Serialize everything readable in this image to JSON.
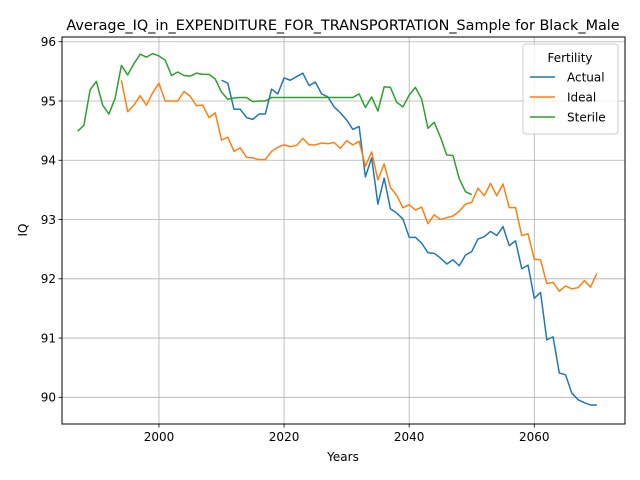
{
  "chart_data": {
    "type": "line",
    "title": "Average_IQ_in_EXPENDITURE_FOR_TRANSPORTATION_Sample for Black_Male",
    "xlabel": "Years",
    "ylabel": "IQ",
    "xlim": [
      1984.5,
      2074.5
    ],
    "ylim": [
      89.55,
      96.08
    ],
    "xticks": [
      2000,
      2020,
      2040,
      2060
    ],
    "yticks": [
      90,
      91,
      92,
      93,
      94,
      95,
      96
    ],
    "grid": true,
    "legend": {
      "title": "Fertility",
      "placement": "top-right"
    },
    "series": [
      {
        "name": "Actual",
        "color": "#1f77b4",
        "x": [
          2010,
          2011,
          2012,
          2013,
          2014,
          2015,
          2016,
          2017,
          2018,
          2019,
          2020,
          2021,
          2022,
          2023,
          2024,
          2025,
          2026,
          2027,
          2028,
          2029,
          2030,
          2031,
          2032,
          2033,
          2034,
          2035,
          2036,
          2037,
          2038,
          2039,
          2040,
          2041,
          2042,
          2043,
          2044,
          2045,
          2046,
          2047,
          2048,
          2049,
          2050,
          2051,
          2052,
          2053,
          2054,
          2055,
          2056,
          2057,
          2058,
          2059,
          2060,
          2061,
          2062,
          2063,
          2064,
          2065,
          2066,
          2067,
          2068,
          2069,
          2070
        ],
        "y": [
          95.35,
          95.3,
          94.86,
          94.86,
          94.72,
          94.69,
          94.78,
          94.78,
          95.2,
          95.12,
          95.39,
          95.35,
          95.41,
          95.47,
          95.26,
          95.32,
          95.12,
          95.07,
          94.9,
          94.8,
          94.68,
          94.52,
          94.57,
          93.72,
          94.04,
          93.26,
          93.7,
          93.18,
          93.11,
          93.01,
          92.7,
          92.7,
          92.6,
          92.44,
          92.43,
          92.35,
          92.25,
          92.32,
          92.22,
          92.4,
          92.46,
          92.67,
          92.71,
          92.8,
          92.73,
          92.88,
          92.56,
          92.64,
          92.17,
          92.23,
          91.67,
          91.77,
          90.97,
          91.02,
          90.41,
          90.38,
          90.07,
          89.96,
          89.91,
          89.87,
          89.87
        ]
      },
      {
        "name": "Ideal",
        "color": "#ff7f0e",
        "x": [
          1994,
          1995,
          1996,
          1997,
          1998,
          1999,
          2000,
          2001,
          2002,
          2003,
          2004,
          2005,
          2006,
          2007,
          2008,
          2009,
          2010,
          2011,
          2012,
          2013,
          2014,
          2015,
          2016,
          2017,
          2018,
          2019,
          2020,
          2021,
          2022,
          2023,
          2024,
          2025,
          2026,
          2027,
          2028,
          2029,
          2030,
          2031,
          2032,
          2033,
          2034,
          2035,
          2036,
          2037,
          2038,
          2039,
          2040,
          2041,
          2042,
          2043,
          2044,
          2045,
          2046,
          2047,
          2048,
          2049,
          2050,
          2051,
          2052,
          2053,
          2054,
          2055,
          2056,
          2057,
          2058,
          2059,
          2060,
          2061,
          2062,
          2063,
          2064,
          2065,
          2066,
          2067,
          2068,
          2069,
          2070
        ],
        "y": [
          95.35,
          94.82,
          94.93,
          95.09,
          94.93,
          95.14,
          95.3,
          95.0,
          95.0,
          95.0,
          95.16,
          95.08,
          94.92,
          94.93,
          94.72,
          94.8,
          94.34,
          94.39,
          94.15,
          94.21,
          94.05,
          94.04,
          94.01,
          94.01,
          94.15,
          94.22,
          94.26,
          94.23,
          94.25,
          94.37,
          94.26,
          94.26,
          94.29,
          94.28,
          94.3,
          94.2,
          94.33,
          94.26,
          94.32,
          93.9,
          94.14,
          93.67,
          93.94,
          93.54,
          93.41,
          93.2,
          93.25,
          93.16,
          93.21,
          92.93,
          93.08,
          93.0,
          93.03,
          93.06,
          93.14,
          93.26,
          93.29,
          93.53,
          93.4,
          93.61,
          93.4,
          93.6,
          93.2,
          93.2,
          92.73,
          92.76,
          92.33,
          92.32,
          91.92,
          91.94,
          91.79,
          91.88,
          91.83,
          91.85,
          91.97,
          91.86,
          92.09
        ]
      },
      {
        "name": "Sterile",
        "color": "#2ca02c",
        "x": [
          1987,
          1988,
          1989,
          1990,
          1991,
          1992,
          1993,
          1994,
          1995,
          1996,
          1997,
          1998,
          1999,
          2000,
          2001,
          2002,
          2003,
          2004,
          2005,
          2006,
          2007,
          2008,
          2009,
          2010,
          2011,
          2012,
          2013,
          2014,
          2015,
          2016,
          2017,
          2018,
          2019,
          2020,
          2021,
          2022,
          2023,
          2024,
          2025,
          2026,
          2027,
          2028,
          2029,
          2030,
          2031,
          2032,
          2033,
          2034,
          2035,
          2036,
          2037,
          2038,
          2039,
          2040,
          2041,
          2042,
          2043,
          2044,
          2045,
          2046,
          2047,
          2048,
          2049,
          2050
        ],
        "y": [
          94.49,
          94.59,
          95.19,
          95.33,
          94.93,
          94.78,
          95.05,
          95.6,
          95.44,
          95.63,
          95.79,
          95.74,
          95.8,
          95.76,
          95.69,
          95.43,
          95.49,
          95.43,
          95.42,
          95.47,
          95.45,
          95.45,
          95.37,
          95.15,
          95.03,
          95.05,
          95.06,
          95.06,
          94.99,
          95.0,
          95.0,
          95.06,
          95.06,
          95.06,
          95.06,
          95.06,
          95.06,
          95.06,
          95.06,
          95.06,
          95.06,
          95.06,
          95.06,
          95.06,
          95.06,
          95.12,
          94.89,
          95.07,
          94.83,
          95.24,
          95.23,
          94.98,
          94.9,
          95.1,
          95.23,
          95.03,
          94.54,
          94.64,
          94.39,
          94.09,
          94.08,
          93.69,
          93.47,
          93.42
        ]
      }
    ]
  }
}
